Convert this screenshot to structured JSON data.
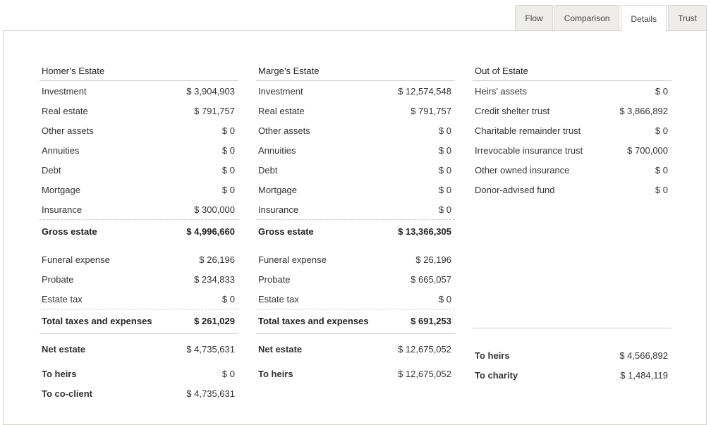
{
  "tabs": [
    {
      "label": "Flow",
      "active": false
    },
    {
      "label": "Comparison",
      "active": false
    },
    {
      "label": "Details",
      "active": true
    },
    {
      "label": "Trust",
      "active": false
    }
  ],
  "homer": {
    "title": "Homer’s Estate",
    "assets": [
      {
        "label": "Investment",
        "value": "$ 3,904,903"
      },
      {
        "label": "Real estate",
        "value": "$ 791,757"
      },
      {
        "label": "Other assets",
        "value": "$ 0"
      },
      {
        "label": "Annuities",
        "value": "$ 0"
      },
      {
        "label": "Debt",
        "value": "$ 0"
      },
      {
        "label": "Mortgage",
        "value": "$ 0"
      },
      {
        "label": "Insurance",
        "value": "$ 300,000"
      }
    ],
    "gross": {
      "label": "Gross estate",
      "value": "$ 4,996,660"
    },
    "expenses": [
      {
        "label": "Funeral expense",
        "value": "$ 26,196"
      },
      {
        "label": "Probate",
        "value": "$ 234,833"
      },
      {
        "label": "Estate tax",
        "value": "$ 0"
      }
    ],
    "total_expenses": {
      "label": "Total taxes and expenses",
      "value": "$ 261,029"
    },
    "net": {
      "label": "Net estate",
      "value": "$ 4,735,631"
    },
    "to_heirs": {
      "label": "To heirs",
      "value": "$ 0"
    },
    "to_coclient": {
      "label": "To co-client",
      "value": "$ 4,735,631"
    }
  },
  "marge": {
    "title": "Marge’s Estate",
    "assets": [
      {
        "label": "Investment",
        "value": "$ 12,574,548"
      },
      {
        "label": "Real estate",
        "value": "$ 791,757"
      },
      {
        "label": "Other assets",
        "value": "$ 0"
      },
      {
        "label": "Annuities",
        "value": "$ 0"
      },
      {
        "label": "Debt",
        "value": "$ 0"
      },
      {
        "label": "Mortgage",
        "value": "$ 0"
      },
      {
        "label": "Insurance",
        "value": "$ 0"
      }
    ],
    "gross": {
      "label": "Gross estate",
      "value": "$ 13,366,305"
    },
    "expenses": [
      {
        "label": "Funeral expense",
        "value": "$ 26,196"
      },
      {
        "label": "Probate",
        "value": "$ 665,057"
      },
      {
        "label": "Estate tax",
        "value": "$ 0"
      }
    ],
    "total_expenses": {
      "label": "Total taxes and expenses",
      "value": "$ 691,253"
    },
    "net": {
      "label": "Net estate",
      "value": "$ 12,675,052"
    },
    "to_heirs": {
      "label": "To heirs",
      "value": "$ 12,675,052"
    }
  },
  "out": {
    "title": "Out of Estate",
    "items": [
      {
        "label": "Heirs’ assets",
        "value": "$ 0"
      },
      {
        "label": "Credit shelter trust",
        "value": "$ 3,866,892"
      },
      {
        "label": "Charitable remainder trust",
        "value": "$ 0"
      },
      {
        "label": "Irrevocable insurance trust",
        "value": "$ 700,000"
      },
      {
        "label": "Other owned insurance",
        "value": "$ 0"
      },
      {
        "label": "Donor-advised fund",
        "value": "$ 0"
      }
    ],
    "to_heirs": {
      "label": "To heirs",
      "value": "$ 4,566,892"
    },
    "to_charity": {
      "label": "To charity",
      "value": "$ 1,484,119"
    }
  }
}
